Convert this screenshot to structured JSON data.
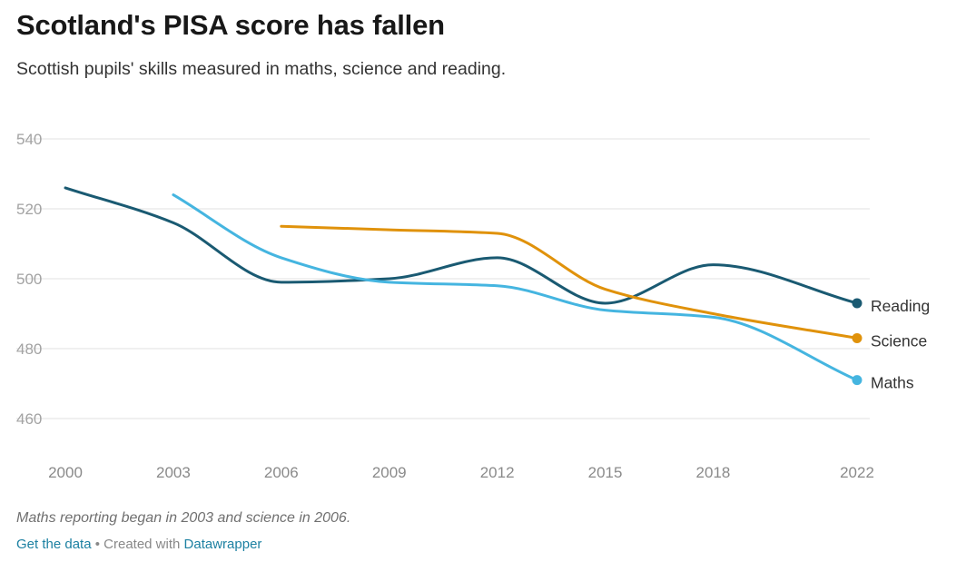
{
  "header": {
    "title": "Scotland's PISA score has fallen",
    "subtitle": "Scottish pupils' skills measured in maths, science and reading."
  },
  "chart_data": {
    "type": "line",
    "title": "Scotland's PISA score has fallen",
    "subtitle": "Scottish pupils' skills measured in maths, science and reading.",
    "xlabel": "",
    "ylabel": "",
    "x_ticks": [
      2000,
      2003,
      2006,
      2009,
      2012,
      2015,
      2018,
      2022
    ],
    "y_ticks": [
      460,
      480,
      500,
      520,
      540
    ],
    "xlim": [
      2000,
      2022
    ],
    "ylim": [
      460,
      540
    ],
    "grid": true,
    "legend": "direct labels at line ends",
    "series": [
      {
        "name": "Reading",
        "color": "#1a5a72",
        "points": [
          {
            "x": 2000,
            "y": 526
          },
          {
            "x": 2003,
            "y": 516
          },
          {
            "x": 2006,
            "y": 499
          },
          {
            "x": 2009,
            "y": 500
          },
          {
            "x": 2012,
            "y": 506
          },
          {
            "x": 2015,
            "y": 493
          },
          {
            "x": 2018,
            "y": 504
          },
          {
            "x": 2022,
            "y": 493
          }
        ]
      },
      {
        "name": "Science",
        "color": "#e0920b",
        "points": [
          {
            "x": 2006,
            "y": 515
          },
          {
            "x": 2009,
            "y": 514
          },
          {
            "x": 2012,
            "y": 513
          },
          {
            "x": 2015,
            "y": 497
          },
          {
            "x": 2018,
            "y": 490
          },
          {
            "x": 2022,
            "y": 483
          }
        ]
      },
      {
        "name": "Maths",
        "color": "#45b5e0",
        "points": [
          {
            "x": 2003,
            "y": 524
          },
          {
            "x": 2006,
            "y": 506
          },
          {
            "x": 2009,
            "y": 499
          },
          {
            "x": 2012,
            "y": 498
          },
          {
            "x": 2015,
            "y": 491
          },
          {
            "x": 2018,
            "y": 489
          },
          {
            "x": 2022,
            "y": 471
          }
        ]
      }
    ]
  },
  "notes": "Maths reporting began in 2003 and science in 2006.",
  "footer": {
    "get_data": "Get the data",
    "separator": " • Created with ",
    "tool": "Datawrapper"
  }
}
